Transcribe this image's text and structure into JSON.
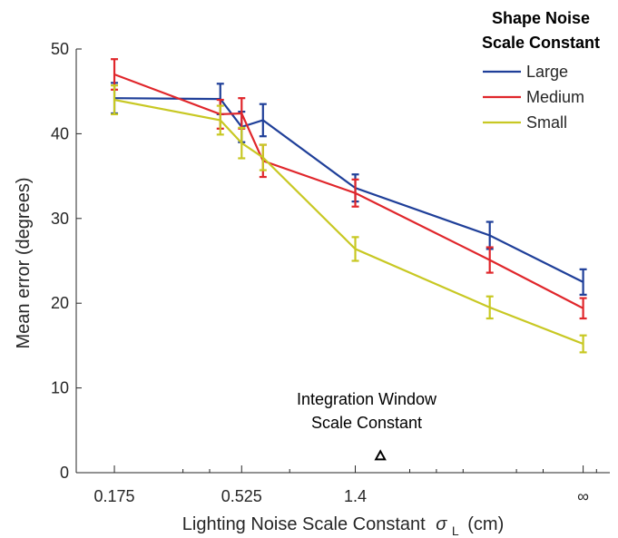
{
  "chart_data": {
    "type": "line",
    "x_categories": [
      "0.175",
      "",
      "0.525",
      "",
      "1.4",
      "",
      "∞"
    ],
    "series": [
      {
        "name": "Large",
        "color": "#1f3f99",
        "values": [
          44.2,
          44.1,
          40.8,
          41.6,
          33.6,
          28.0,
          22.5
        ],
        "err": [
          1.8,
          1.8,
          1.8,
          1.9,
          1.6,
          1.6,
          1.5
        ]
      },
      {
        "name": "Medium",
        "color": "#e0262b",
        "values": [
          47.0,
          42.3,
          42.4,
          36.8,
          33.0,
          25.1,
          19.4
        ],
        "err": [
          1.8,
          1.7,
          1.8,
          1.9,
          1.6,
          1.5,
          1.2
        ]
      },
      {
        "name": "Small",
        "color": "#c8c823",
        "values": [
          44.0,
          41.6,
          38.9,
          37.2,
          26.4,
          19.5,
          15.2
        ],
        "err": [
          1.7,
          1.7,
          1.8,
          1.5,
          1.4,
          1.3,
          1.0
        ]
      }
    ],
    "xlabel_main": "Lighting Noise Scale Constant",
    "xlabel_symbol": "σ",
    "xlabel_sub": "L",
    "xlabel_unit": "(cm)",
    "ylabel": "Mean error (degrees)",
    "ylim": [
      0,
      50
    ],
    "yticks": [
      0,
      10,
      20,
      30,
      40,
      50
    ],
    "xticks_major_labels": [
      "0.175",
      "0.525",
      "1.4",
      "∞"
    ],
    "legend_title_line1": "Shape Noise",
    "legend_title_line2": "Scale Constant",
    "legend_position": "top-right",
    "annotation_line1": "Integration Window",
    "annotation_line2": "Scale Constant",
    "annotation_marker": "triangle",
    "annotation_x_log": 0.24,
    "x_log_positions": [
      -0.757,
      -0.36,
      -0.28,
      -0.2,
      0.146,
      0.65,
      1.0
    ],
    "x_minor_ticks_log": [
      -0.5,
      -0.4,
      -0.1,
      0.35,
      0.45,
      0.55,
      0.75,
      0.85,
      1.05
    ]
  }
}
